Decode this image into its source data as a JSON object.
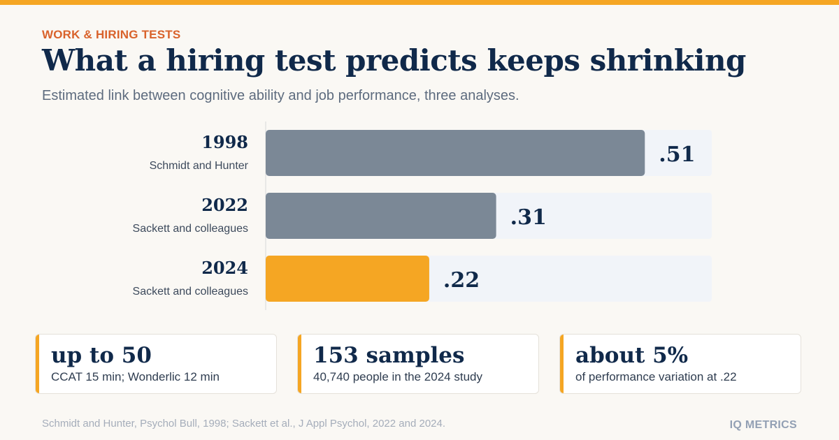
{
  "header": {
    "eyebrow": "WORK & HIRING TESTS",
    "title": "What a hiring test predicts keeps shrinking",
    "subtitle": "Estimated link between cognitive ability and job performance, three analyses."
  },
  "chart_data": {
    "type": "bar",
    "orientation": "horizontal",
    "categories": [
      "1998",
      "2022",
      "2024"
    ],
    "category_sublabels": [
      "Schmidt and Hunter",
      "Sackett and colleagues",
      "Sackett and colleagues"
    ],
    "values": [
      0.51,
      0.31,
      0.22
    ],
    "value_labels": [
      ".51",
      ".31",
      ".22"
    ],
    "highlight_index": 2,
    "xlim": [
      0,
      0.6
    ],
    "title": "What a hiring test predicts keeps shrinking",
    "xlabel": "",
    "ylabel": "",
    "grid": false,
    "colors": {
      "bar": "#7b8896",
      "highlight": "#f5a623",
      "track": "#f1f4f9",
      "axis": "#d7d7d7",
      "label": "#10294a",
      "sublabel": "#3d4a5c"
    }
  },
  "stats": [
    {
      "big": "up to 50",
      "small": "CCAT 15 min; Wonderlic 12 min"
    },
    {
      "big": "153 samples",
      "small": "40,740 people in the 2024 study"
    },
    {
      "big": "about 5%",
      "small": "of performance variation at .22"
    }
  ],
  "footer": {
    "source": "Schmidt and Hunter, Psychol Bull, 1998; Sackett et al., J Appl Psychol, 2022 and 2024.",
    "brand": "IQ METRICS"
  },
  "colors": {
    "accent": "#f5a623",
    "eyebrow": "#d9622b",
    "navy": "#10294a",
    "background": "#faf8f4"
  }
}
